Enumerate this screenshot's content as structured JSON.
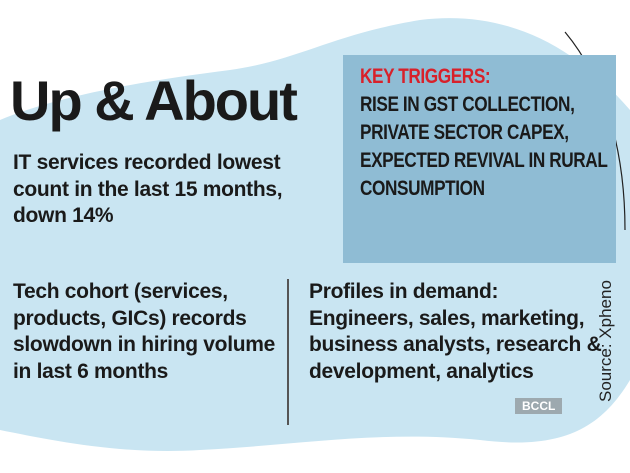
{
  "title": "Up & About",
  "stat_it_services": "IT services recorded lowest count in the last 15 months, down 14%",
  "stat_tech_cohort": "Tech cohort (services, products, GICs) records slowdown in hiring volume in last 6 months",
  "key_triggers": {
    "heading": "KEY TRIGGERS:",
    "text": "RISE IN GST COLLECTION, PRIVATE SECTOR CAPEX, EXPECTED REVIVAL IN RURAL CONSUMPTION"
  },
  "profiles": {
    "heading": "Profiles in demand:",
    "text": "Engineers, sales, marketing, business analysts, research & development, analytics"
  },
  "source": "Source: Xpheno",
  "watermark": "BCCL",
  "colors": {
    "background_blob": "#c9e5f2",
    "triggers_box": "#8fbcd4",
    "triggers_heading": "#d8212a"
  }
}
